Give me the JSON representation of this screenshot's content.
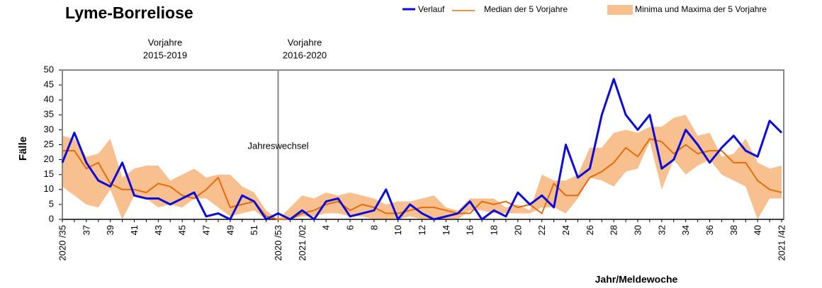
{
  "chart_data": {
    "type": "line",
    "title": "Lyme-Borreliose",
    "ylabel": "Fälle",
    "xlabel": "Jahr/Meldewoche",
    "annotations": [
      "Vorjahre",
      "2015-2019",
      "Vorjahre",
      "2016-2020",
      "Jahreswechsel"
    ],
    "categories": [
      "2020 /35",
      null,
      "37",
      null,
      "39",
      null,
      "41",
      null,
      "43",
      null,
      "45",
      null,
      "47",
      null,
      "49",
      null,
      "51",
      null,
      "2020 /53",
      null,
      "2021 /02",
      null,
      "4",
      null,
      "6",
      null,
      "8",
      null,
      "10",
      null,
      "12",
      null,
      "14",
      null,
      "16",
      null,
      "18",
      null,
      "20",
      null,
      "22",
      null,
      "24",
      null,
      "26",
      null,
      "28",
      null,
      "30",
      null,
      "32",
      null,
      "34",
      null,
      "36",
      null,
      "38",
      null,
      "40",
      null,
      "2021 /42"
    ],
    "ylim": [
      0,
      50
    ],
    "yticks": [
      0,
      5,
      10,
      15,
      20,
      25,
      30,
      35,
      40,
      45,
      50
    ],
    "series": [
      {
        "name": "Verlauf",
        "color": "#0a0adc",
        "values": [
          19,
          29,
          19,
          13,
          11,
          19,
          8,
          7,
          7,
          5,
          7,
          9,
          1,
          2,
          0,
          8,
          6,
          0,
          2,
          0,
          3,
          0,
          6,
          7,
          1,
          2,
          3,
          10,
          0,
          5,
          2,
          0,
          1,
          2,
          6,
          0,
          3,
          1,
          9,
          5,
          8,
          4,
          25,
          14,
          17,
          35,
          47,
          35,
          30,
          35,
          17,
          20,
          30,
          25,
          19,
          24,
          28,
          23,
          21,
          33,
          29
        ]
      },
      {
        "name": "Median der 5 Vorjahre",
        "color": "#e46c0a",
        "values": [
          23,
          23,
          17,
          19,
          12,
          10,
          10,
          9,
          12,
          11,
          8,
          7,
          10,
          14,
          4,
          5,
          6,
          1,
          0,
          0,
          2,
          3,
          5,
          6,
          3,
          5,
          4,
          2,
          2,
          3,
          4,
          4,
          3,
          2,
          2,
          6,
          5,
          6,
          4,
          5,
          2,
          12,
          8,
          8,
          14,
          16,
          19,
          24,
          21,
          27,
          26,
          22,
          25,
          22,
          23,
          23,
          19,
          19,
          13,
          10,
          9
        ]
      },
      {
        "name": "Minima und Maxima der 5 Vorjahre",
        "color": "#f9c08f",
        "low": [
          11,
          8,
          5,
          4,
          10,
          0,
          8,
          7,
          4,
          5,
          4,
          7,
          7,
          4,
          1,
          2,
          3,
          0,
          0,
          0,
          1,
          1,
          2,
          2,
          1,
          1,
          0,
          0,
          0,
          1,
          0,
          0,
          0,
          0,
          3,
          3,
          2,
          2,
          2,
          2,
          4,
          4,
          2,
          7,
          14,
          13,
          11,
          16,
          17,
          26,
          10,
          20,
          15,
          18,
          20,
          15,
          13,
          11,
          0,
          7,
          7
        ],
        "high": [
          28,
          27,
          21,
          22,
          27,
          14,
          17,
          18,
          18,
          13,
          15,
          17,
          14,
          15,
          15,
          11,
          9,
          3,
          0,
          4,
          8,
          7,
          9,
          8,
          9,
          8,
          7,
          5,
          6,
          6,
          7,
          8,
          4,
          3,
          7,
          7,
          7,
          4,
          5,
          3,
          15,
          13,
          13,
          15,
          24,
          24,
          29,
          30,
          29,
          31,
          31,
          34,
          35,
          28,
          29,
          21,
          22,
          27,
          19,
          17,
          18
        ]
      }
    ]
  }
}
